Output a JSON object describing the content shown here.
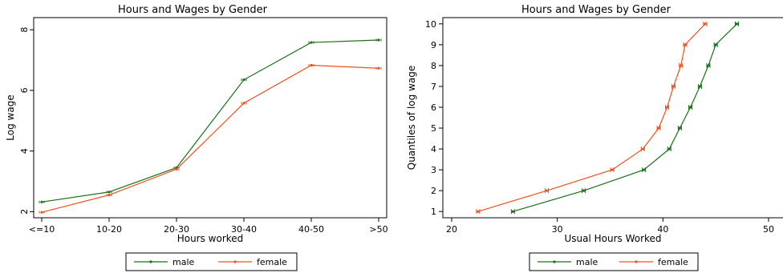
{
  "chart_data": [
    {
      "type": "line",
      "title": "Hours and Wages by Gender",
      "xlabel": "Hours worked",
      "ylabel": "Log wage",
      "categories": [
        "<=10",
        "10-20",
        "20-30",
        "30-40",
        "40-50",
        ">50"
      ],
      "ylim": [
        1.8,
        8.4
      ],
      "yticks": [
        2,
        4,
        6,
        8
      ],
      "grid": false,
      "legend_position": "bottom",
      "series": [
        {
          "name": "male",
          "color": "#1a6e1a",
          "values": [
            2.32,
            2.65,
            3.45,
            6.35,
            7.58,
            7.66
          ]
        },
        {
          "name": "female",
          "color": "#f0501e",
          "values": [
            1.98,
            2.55,
            3.4,
            5.58,
            6.83,
            6.73
          ]
        }
      ]
    },
    {
      "type": "line",
      "title": "Hours and Wages by Gender",
      "xlabel": "Usual Hours Worked",
      "ylabel": "Quantiles of log wage",
      "xlim": [
        20,
        50
      ],
      "xticks": [
        20,
        30,
        40,
        50
      ],
      "xtick_labels": [
        "20",
        "30",
        "40",
        "50"
      ],
      "ylim": [
        0.7,
        10.3
      ],
      "yticks": [
        1,
        2,
        3,
        4,
        5,
        6,
        7,
        8,
        9,
        10
      ],
      "grid": false,
      "legend_position": "bottom",
      "series": [
        {
          "name": "male",
          "color": "#1a6e1a",
          "points": [
            [
              25.8,
              1
            ],
            [
              32.5,
              2
            ],
            [
              38.2,
              3
            ],
            [
              40.6,
              4
            ],
            [
              41.6,
              5
            ],
            [
              42.6,
              6
            ],
            [
              43.5,
              7
            ],
            [
              44.3,
              8
            ],
            [
              45.0,
              9
            ],
            [
              47.0,
              10
            ]
          ]
        },
        {
          "name": "female",
          "color": "#f0501e",
          "points": [
            [
              22.5,
              1
            ],
            [
              29.0,
              2
            ],
            [
              35.2,
              3
            ],
            [
              38.1,
              4
            ],
            [
              39.6,
              5
            ],
            [
              40.4,
              6
            ],
            [
              41.0,
              7
            ],
            [
              41.7,
              8
            ],
            [
              42.1,
              9
            ],
            [
              44.0,
              10
            ]
          ]
        }
      ]
    }
  ]
}
